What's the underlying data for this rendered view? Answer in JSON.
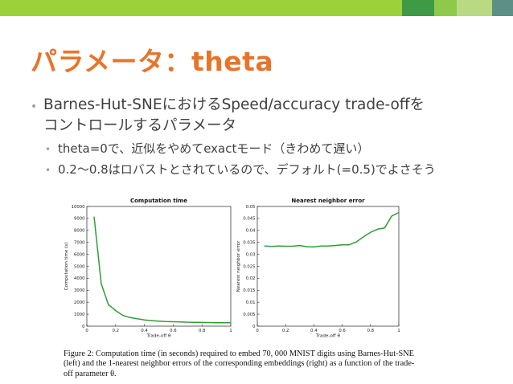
{
  "colors": {
    "accent": "#e8742a",
    "line": "#2e9e33",
    "bar": [
      "#9cd13a",
      "#3f9a47",
      "#8fc94a",
      "#b9d983",
      "#5e8f86"
    ]
  },
  "slide": {
    "title": "パラメータ：theta",
    "bullet1_line1": "Barnes-Hut-SNEにおけるSpeed/accuracy trade-offを",
    "bullet1_line2": "コントロールするパラメータ",
    "sub1": "theta=0で、近似をやめてexactモード（きわめて遅い）",
    "sub2": "0.2〜0.8はロバストとされているので、デフォルト(=0.5)でよさそう",
    "bullet_glyph": "•"
  },
  "caption": "Figure 2: Computation time (in seconds) required to embed 70, 000 MNIST digits using Barnes-Hut-SNE (left) and the 1-nearest neighbor errors of the corresponding embeddings (right) as a function of the trade-off parameter θ.",
  "chart_data": [
    {
      "type": "line",
      "title": "Computation time",
      "xlabel": "Trade-off θ",
      "ylabel": "Computation time (s)",
      "xlim": [
        0,
        1
      ],
      "ylim": [
        0,
        10000
      ],
      "xticks": [
        "0",
        "0.2",
        "0.4",
        "0.6",
        "0.8",
        "1"
      ],
      "yticks": [
        "0",
        "1000",
        "2000",
        "3000",
        "4000",
        "5000",
        "6000",
        "7000",
        "8000",
        "9000",
        "10000"
      ],
      "x": [
        0.05,
        0.1,
        0.15,
        0.2,
        0.25,
        0.3,
        0.35,
        0.4,
        0.45,
        0.5,
        0.55,
        0.6,
        0.65,
        0.7,
        0.75,
        0.8,
        0.85,
        0.9,
        0.95,
        1.0
      ],
      "y": [
        9150,
        3550,
        1800,
        1300,
        900,
        720,
        620,
        520,
        460,
        420,
        390,
        370,
        350,
        330,
        320,
        310,
        300,
        290,
        285,
        280
      ]
    },
    {
      "type": "line",
      "title": "Nearest neighbor error",
      "xlabel": "Trade-off θ",
      "ylabel": "Nearest neighbor error",
      "xlim": [
        0,
        1
      ],
      "ylim": [
        0,
        0.05
      ],
      "xticks": [
        "0",
        "0.2",
        "0.4",
        "0.6",
        "0.8",
        "1"
      ],
      "yticks": [
        "0",
        "0.005",
        "0.01",
        "0.015",
        "0.02",
        "0.025",
        "0.03",
        "0.035",
        "0.04",
        "0.045",
        "0.05"
      ],
      "x": [
        0.05,
        0.1,
        0.15,
        0.2,
        0.25,
        0.3,
        0.35,
        0.4,
        0.45,
        0.5,
        0.55,
        0.6,
        0.65,
        0.7,
        0.75,
        0.8,
        0.85,
        0.9,
        0.95,
        1.0
      ],
      "y": [
        0.0335,
        0.0333,
        0.0335,
        0.0334,
        0.0334,
        0.0337,
        0.0332,
        0.0331,
        0.0335,
        0.0335,
        0.0337,
        0.034,
        0.034,
        0.0352,
        0.0373,
        0.0392,
        0.0405,
        0.041,
        0.046,
        0.0475
      ]
    }
  ]
}
